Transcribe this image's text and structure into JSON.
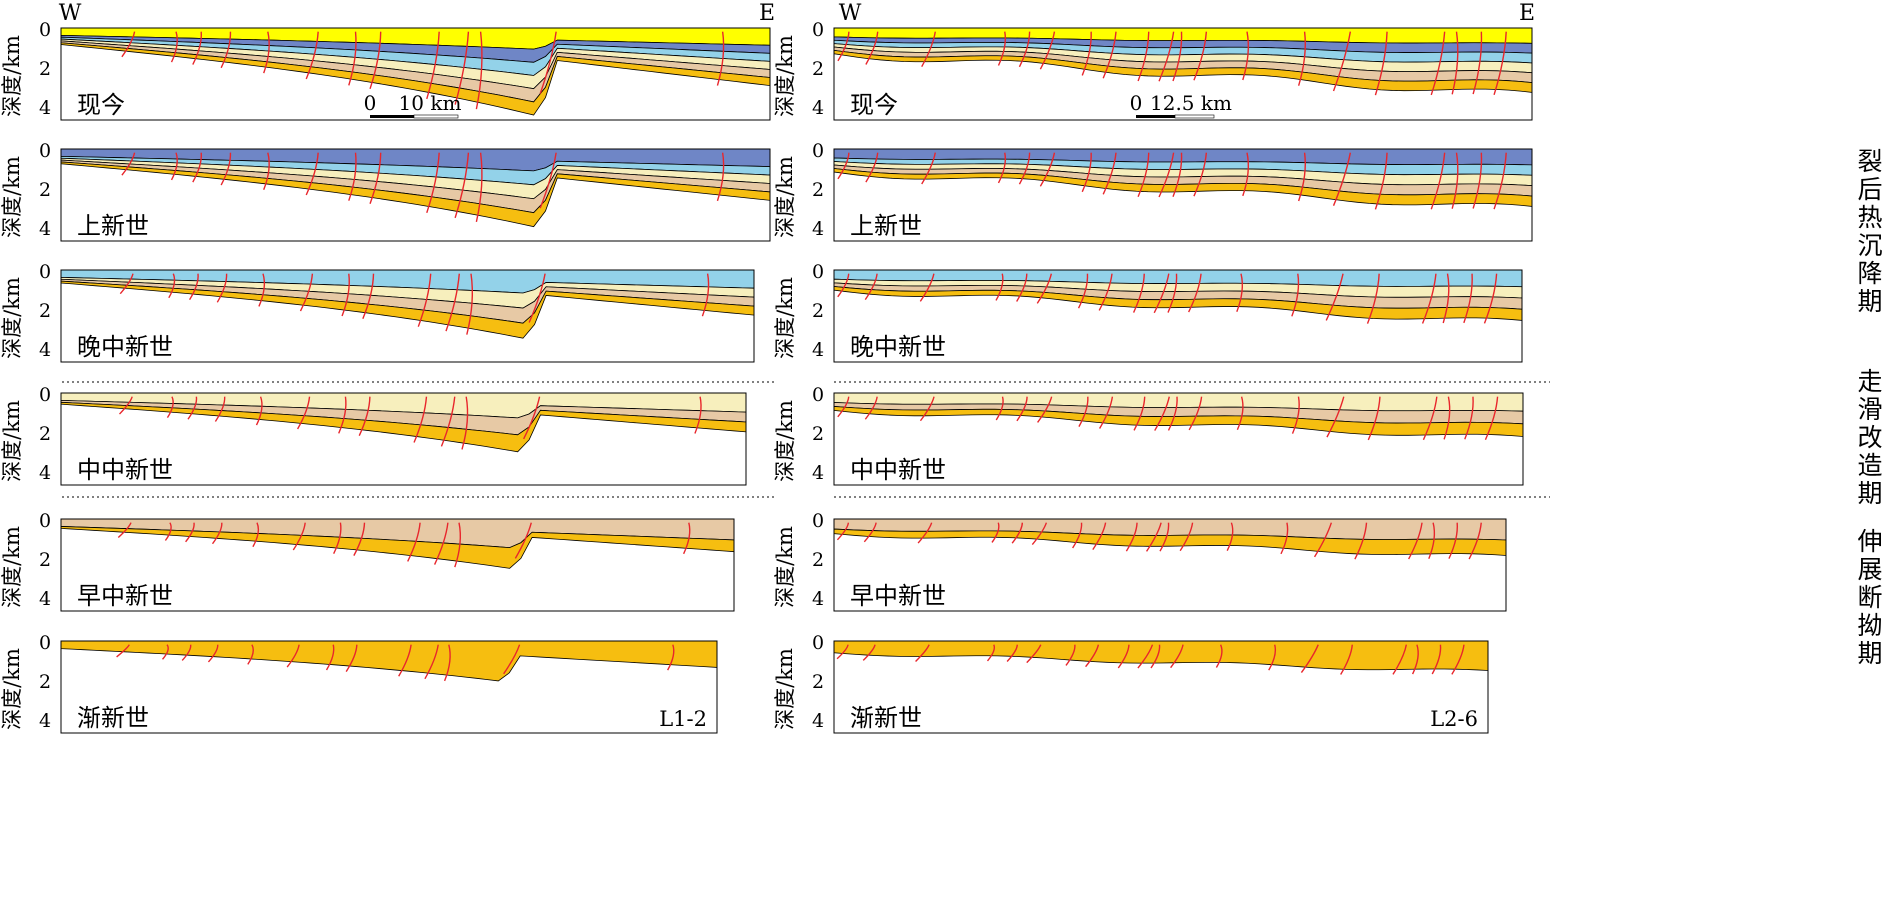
{
  "figure": {
    "colors": {
      "yellow": "#ffff00",
      "blue": "#6f86c6",
      "lightblue": "#93d2e9",
      "cream": "#f7efbd",
      "tan": "#e7c9a5",
      "orange": "#f6be10",
      "fault": "#e8262c"
    },
    "directions": {
      "left": {
        "west": "W",
        "east": "E"
      },
      "right": {
        "west": "W",
        "east": "E"
      }
    },
    "axis": {
      "label": "深度/km",
      "ticks": [
        "0",
        "2",
        "4"
      ]
    },
    "panels": [
      {
        "column": "left",
        "row": 0,
        "stage": "现今",
        "scalebar": {
          "zero": "0",
          "label": "10 km"
        }
      },
      {
        "column": "left",
        "row": 1,
        "stage": "上新世"
      },
      {
        "column": "left",
        "row": 2,
        "stage": "晚中新世"
      },
      {
        "column": "left",
        "row": 3,
        "stage": "中中新世"
      },
      {
        "column": "left",
        "row": 4,
        "stage": "早中新世"
      },
      {
        "column": "left",
        "row": 5,
        "stage": "渐新世",
        "profile_id": "L1-2"
      },
      {
        "column": "right",
        "row": 0,
        "stage": "现今",
        "scalebar": {
          "zero": "0",
          "label": "12.5 km"
        }
      },
      {
        "column": "right",
        "row": 1,
        "stage": "上新世"
      },
      {
        "column": "right",
        "row": 2,
        "stage": "晚中新世"
      },
      {
        "column": "right",
        "row": 3,
        "stage": "中中新世"
      },
      {
        "column": "right",
        "row": 4,
        "stage": "早中新世"
      },
      {
        "column": "right",
        "row": 5,
        "stage": "渐新世",
        "profile_id": "L2-6"
      }
    ],
    "periods": [
      {
        "name": "post-rift-thermal-subsidence",
        "label": "裂后热沉降期"
      },
      {
        "name": "strike-slip-modification",
        "label": "走滑改造期"
      },
      {
        "name": "extensional-faulting-depression",
        "label": "伸展断拗期"
      }
    ]
  }
}
